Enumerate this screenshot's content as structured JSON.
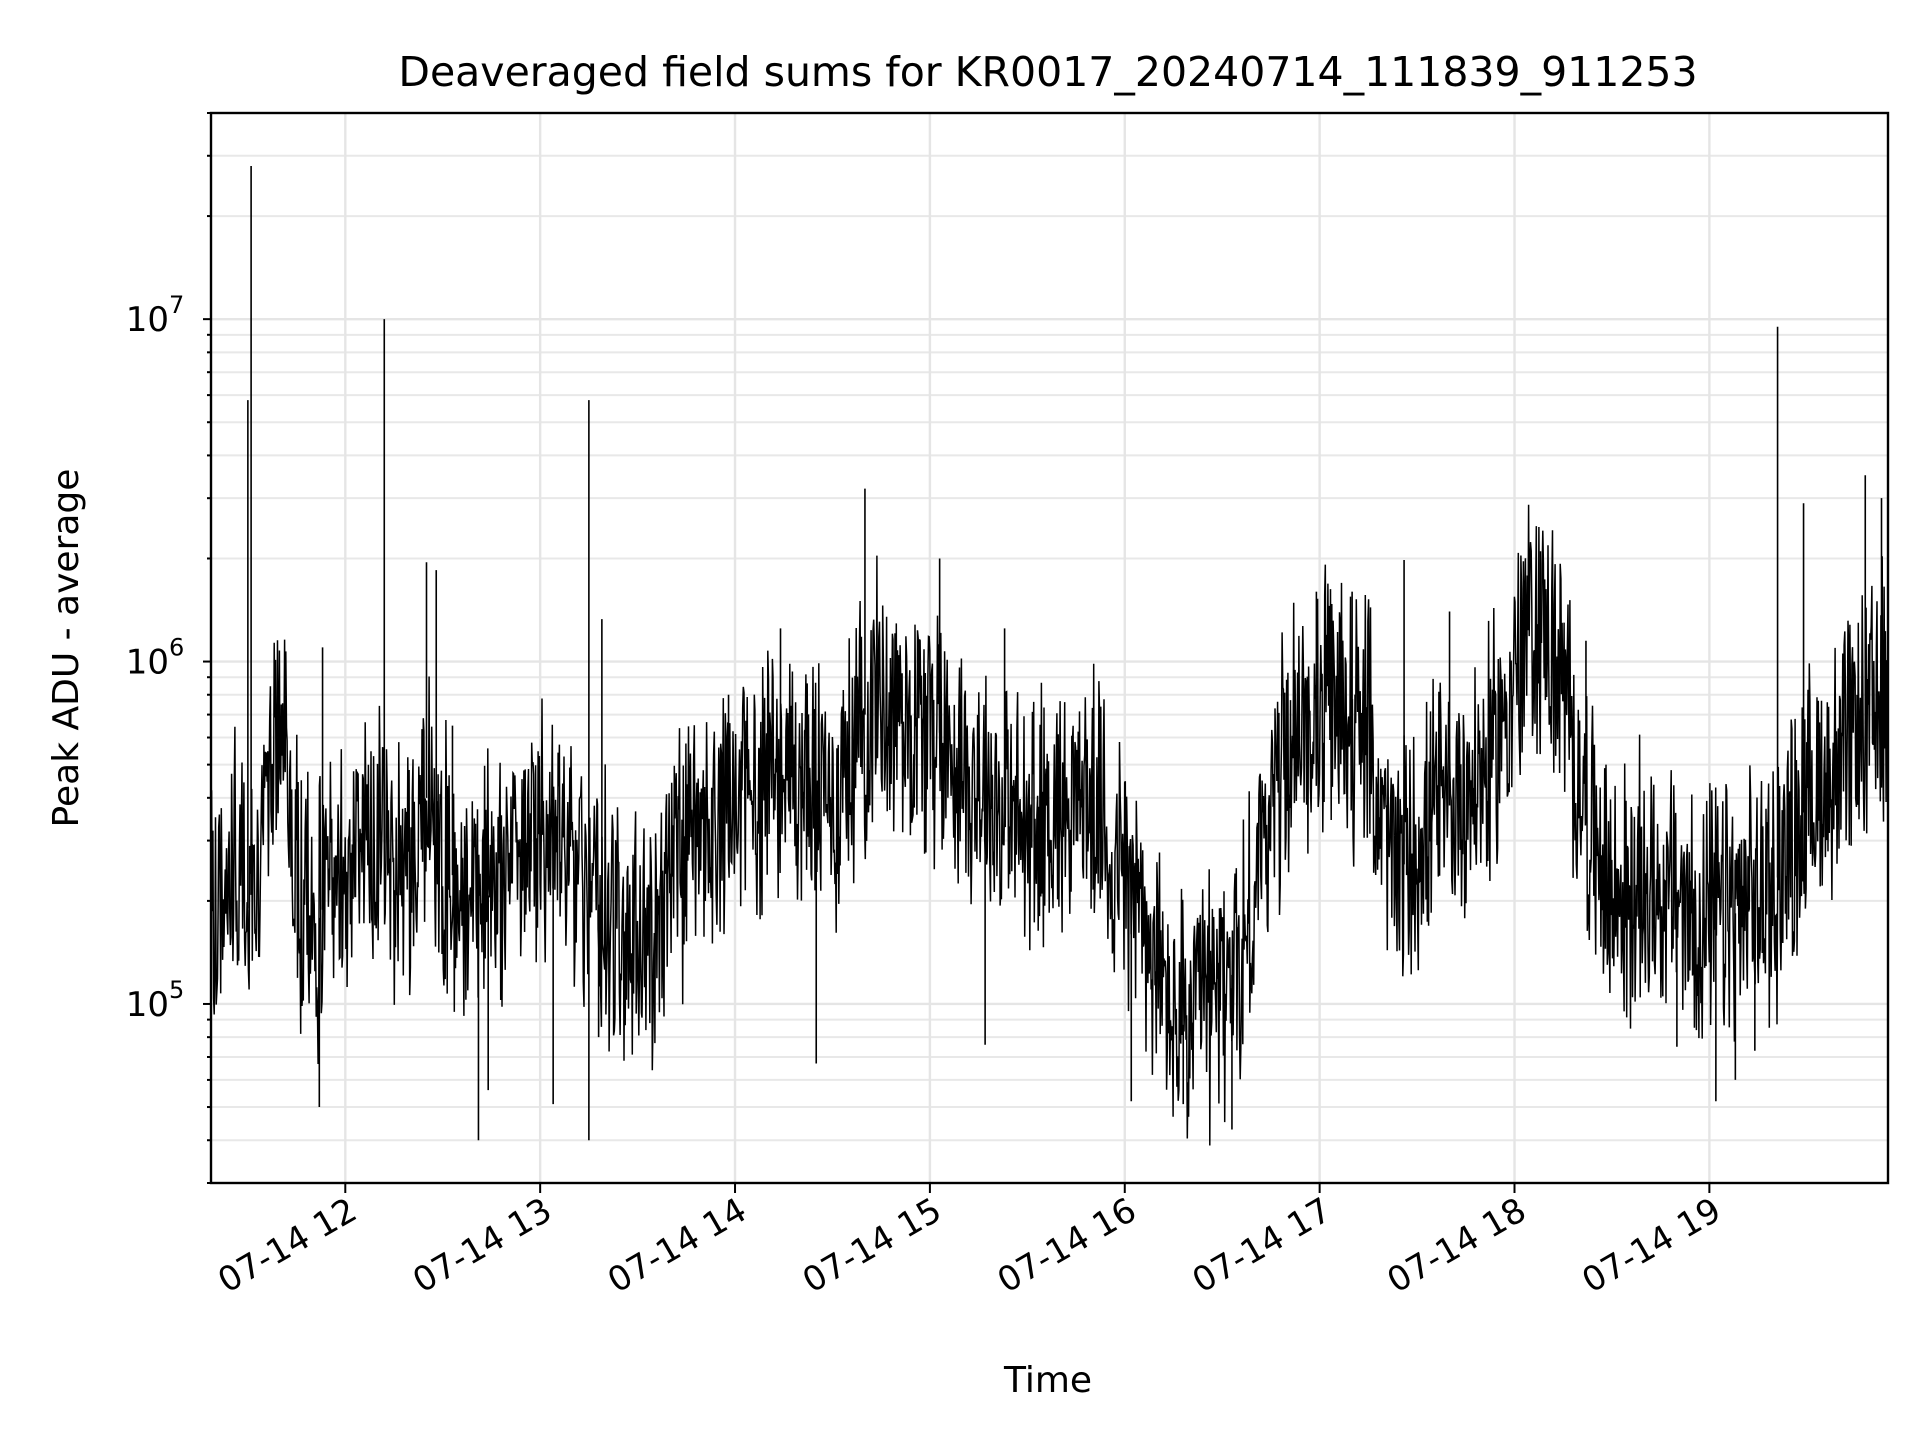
{
  "chart_data": {
    "type": "line",
    "title": "Deaveraged field sums for KR0017_20240714_111839_911253",
    "xlabel": "Time",
    "ylabel": "Peak ADU - average",
    "x_range": [
      "2024-07-14 11:18:39",
      "2024-07-14 19:55"
    ],
    "y_scale": "log",
    "ylim": [
      30000,
      40000000
    ],
    "grid": "on (major and minor)",
    "legend": "none",
    "x_tick_labels": [
      "07-14 12",
      "07-14 13",
      "07-14 14",
      "07-14 15",
      "07-14 16",
      "07-14 17",
      "07-14 18",
      "07-14 19"
    ],
    "x_tick_times": [
      "2024-07-14 12:00",
      "2024-07-14 13:00",
      "2024-07-14 14:00",
      "2024-07-14 15:00",
      "2024-07-14 16:00",
      "2024-07-14 17:00",
      "2024-07-14 18:00",
      "2024-07-14 19:00"
    ],
    "y_ticks": [
      {
        "value": 100000,
        "base": "10",
        "exp": "5"
      },
      {
        "value": 1000000,
        "base": "10",
        "exp": "6"
      },
      {
        "value": 10000000,
        "base": "10",
        "exp": "7"
      }
    ],
    "series": [
      {
        "color": "#000000",
        "points": [
          [
            "2024-07-14 11:20",
            180000
          ],
          [
            "2024-07-14 11:25",
            260000
          ],
          [
            "2024-07-14 11:30",
            190000
          ],
          [
            "2024-07-14 11:35",
            300000
          ],
          [
            "2024-07-14 11:40",
            700000
          ],
          [
            "2024-07-14 11:45",
            240000
          ],
          [
            "2024-07-14 11:50",
            160000
          ],
          [
            "2024-07-14 11:55",
            210000
          ],
          [
            "2024-07-14 12:00",
            250000
          ],
          [
            "2024-07-14 12:05",
            300000
          ],
          [
            "2024-07-14 12:10",
            320000
          ],
          [
            "2024-07-14 12:15",
            260000
          ],
          [
            "2024-07-14 12:20",
            280000
          ],
          [
            "2024-07-14 12:25",
            400000
          ],
          [
            "2024-07-14 12:30",
            250000
          ],
          [
            "2024-07-14 12:35",
            230000
          ],
          [
            "2024-07-14 12:40",
            240000
          ],
          [
            "2024-07-14 12:45",
            200000
          ],
          [
            "2024-07-14 12:50",
            280000
          ],
          [
            "2024-07-14 12:55",
            300000
          ],
          [
            "2024-07-14 13:00",
            320000
          ],
          [
            "2024-07-14 13:05",
            280000
          ],
          [
            "2024-07-14 13:10",
            260000
          ],
          [
            "2024-07-14 13:15",
            220000
          ],
          [
            "2024-07-14 13:20",
            180000
          ],
          [
            "2024-07-14 13:25",
            150000
          ],
          [
            "2024-07-14 13:30",
            140000
          ],
          [
            "2024-07-14 13:35",
            170000
          ],
          [
            "2024-07-14 13:40",
            220000
          ],
          [
            "2024-07-14 13:45",
            260000
          ],
          [
            "2024-07-14 13:50",
            300000
          ],
          [
            "2024-07-14 13:55",
            330000
          ],
          [
            "2024-07-14 14:00",
            380000
          ],
          [
            "2024-07-14 14:05",
            420000
          ],
          [
            "2024-07-14 14:10",
            480000
          ],
          [
            "2024-07-14 14:15",
            500000
          ],
          [
            "2024-07-14 14:20",
            450000
          ],
          [
            "2024-07-14 14:25",
            420000
          ],
          [
            "2024-07-14 14:30",
            380000
          ],
          [
            "2024-07-14 14:35",
            500000
          ],
          [
            "2024-07-14 14:40",
            700000
          ],
          [
            "2024-07-14 14:45",
            800000
          ],
          [
            "2024-07-14 14:50",
            750000
          ],
          [
            "2024-07-14 14:55",
            700000
          ],
          [
            "2024-07-14 15:00",
            650000
          ],
          [
            "2024-07-14 15:05",
            600000
          ],
          [
            "2024-07-14 15:10",
            500000
          ],
          [
            "2024-07-14 15:15",
            450000
          ],
          [
            "2024-07-14 15:20",
            400000
          ],
          [
            "2024-07-14 15:25",
            350000
          ],
          [
            "2024-07-14 15:30",
            320000
          ],
          [
            "2024-07-14 15:35",
            360000
          ],
          [
            "2024-07-14 15:40",
            380000
          ],
          [
            "2024-07-14 15:45",
            420000
          ],
          [
            "2024-07-14 15:50",
            380000
          ],
          [
            "2024-07-14 15:55",
            300000
          ],
          [
            "2024-07-14 16:00",
            250000
          ],
          [
            "2024-07-14 16:05",
            180000
          ],
          [
            "2024-07-14 16:10",
            120000
          ],
          [
            "2024-07-14 16:15",
            90000
          ],
          [
            "2024-07-14 16:20",
            85000
          ],
          [
            "2024-07-14 16:25",
            100000
          ],
          [
            "2024-07-14 16:30",
            110000
          ],
          [
            "2024-07-14 16:35",
            130000
          ],
          [
            "2024-07-14 16:40",
            200000
          ],
          [
            "2024-07-14 16:45",
            400000
          ],
          [
            "2024-07-14 16:50",
            550000
          ],
          [
            "2024-07-14 16:55",
            650000
          ],
          [
            "2024-07-14 17:00",
            700000
          ],
          [
            "2024-07-14 17:05",
            750000
          ],
          [
            "2024-07-14 17:10",
            700000
          ],
          [
            "2024-07-14 17:15",
            600000
          ],
          [
            "2024-07-14 17:20",
            300000
          ],
          [
            "2024-07-14 17:25",
            250000
          ],
          [
            "2024-07-14 17:30",
            280000
          ],
          [
            "2024-07-14 17:35",
            350000
          ],
          [
            "2024-07-14 17:40",
            380000
          ],
          [
            "2024-07-14 17:45",
            420000
          ],
          [
            "2024-07-14 17:50",
            450000
          ],
          [
            "2024-07-14 17:55",
            600000
          ],
          [
            "2024-07-14 18:00",
            900000
          ],
          [
            "2024-07-14 18:05",
            1300000
          ],
          [
            "2024-07-14 18:10",
            1200000
          ],
          [
            "2024-07-14 18:15",
            800000
          ],
          [
            "2024-07-14 18:20",
            450000
          ],
          [
            "2024-07-14 18:25",
            280000
          ],
          [
            "2024-07-14 18:30",
            200000
          ],
          [
            "2024-07-14 18:35",
            200000
          ],
          [
            "2024-07-14 18:40",
            230000
          ],
          [
            "2024-07-14 18:45",
            220000
          ],
          [
            "2024-07-14 18:50",
            200000
          ],
          [
            "2024-07-14 18:55",
            180000
          ],
          [
            "2024-07-14 19:00",
            170000
          ],
          [
            "2024-07-14 19:05",
            190000
          ],
          [
            "2024-07-14 19:10",
            180000
          ],
          [
            "2024-07-14 19:15",
            200000
          ],
          [
            "2024-07-14 19:20",
            220000
          ],
          [
            "2024-07-14 19:25",
            300000
          ],
          [
            "2024-07-14 19:30",
            380000
          ],
          [
            "2024-07-14 19:35",
            450000
          ],
          [
            "2024-07-14 19:40",
            500000
          ],
          [
            "2024-07-14 19:45",
            600000
          ],
          [
            "2024-07-14 19:50",
            700000
          ],
          [
            "2024-07-14 19:54",
            800000
          ]
        ],
        "spikes": [
          [
            "2024-07-14 11:31",
            28000000
          ],
          [
            "2024-07-14 11:30",
            5800000
          ],
          [
            "2024-07-14 12:12",
            10000000
          ],
          [
            "2024-07-14 12:25",
            1950000
          ],
          [
            "2024-07-14 12:28",
            1850000
          ],
          [
            "2024-07-14 13:15",
            5800000
          ],
          [
            "2024-07-14 13:19",
            1330000
          ],
          [
            "2024-07-14 14:40",
            3200000
          ],
          [
            "2024-07-14 15:03",
            2000000
          ],
          [
            "2024-07-14 17:26",
            1980000
          ],
          [
            "2024-07-14 18:08",
            2100000
          ],
          [
            "2024-07-14 19:21",
            9500000
          ],
          [
            "2024-07-14 19:29",
            2900000
          ],
          [
            "2024-07-14 19:48",
            3500000
          ],
          [
            "2024-07-14 19:53",
            3000000
          ],
          [
            "2024-07-14 11:53",
            1100000
          ],
          [
            "2024-07-14 12:33",
            650000
          ],
          [
            "2024-07-14 13:58",
            800000
          ],
          [
            "2024-07-14 14:14",
            1250000
          ],
          [
            "2024-07-14 15:23",
            1250000
          ],
          [
            "2024-07-14 16:59",
            1600000
          ],
          [
            "2024-07-14 17:10",
            1600000
          ],
          [
            "2024-07-14 17:40",
            1400000
          ],
          [
            "2024-07-14 18:22",
            1150000
          ]
        ],
        "dips": [
          [
            "2024-07-14 11:52",
            50000
          ],
          [
            "2024-07-14 12:41",
            40000
          ],
          [
            "2024-07-14 12:44",
            56000
          ],
          [
            "2024-07-14 13:04",
            51000
          ],
          [
            "2024-07-14 13:15",
            40000
          ],
          [
            "2024-07-14 13:18",
            80000
          ],
          [
            "2024-07-14 14:25",
            67000
          ],
          [
            "2024-07-14 15:17",
            76000
          ],
          [
            "2024-07-14 16:02",
            52000
          ],
          [
            "2024-07-14 16:18",
            51000
          ],
          [
            "2024-07-14 16:33",
            43000
          ],
          [
            "2024-07-14 18:50",
            75000
          ],
          [
            "2024-07-14 19:02",
            52000
          ],
          [
            "2024-07-14 19:08",
            60000
          ],
          [
            "2024-07-14 19:14",
            73000
          ]
        ]
      }
    ]
  }
}
